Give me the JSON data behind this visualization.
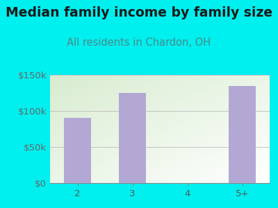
{
  "title": "Median family income by family size",
  "subtitle": "All residents in Chardon, OH",
  "categories": [
    "2",
    "3",
    "4",
    "5+"
  ],
  "values": [
    90000,
    125000,
    0,
    135000
  ],
  "bar_color": "#b3a8d4",
  "background_color": "#00EFEF",
  "plot_bg_color_topleft": "#d8ecd0",
  "plot_bg_color_bottomright": "#ffffff",
  "title_color": "#1a1a1a",
  "subtitle_color": "#4a8a8a",
  "tick_color": "#555555",
  "ytick_color": "#666666",
  "ylim": [
    0,
    150000
  ],
  "yticks": [
    0,
    50000,
    100000,
    150000
  ],
  "ytick_labels": [
    "$0",
    "$50k",
    "$100k",
    "$150k"
  ],
  "title_fontsize": 13.5,
  "subtitle_fontsize": 10.5,
  "tick_fontsize": 9.5
}
